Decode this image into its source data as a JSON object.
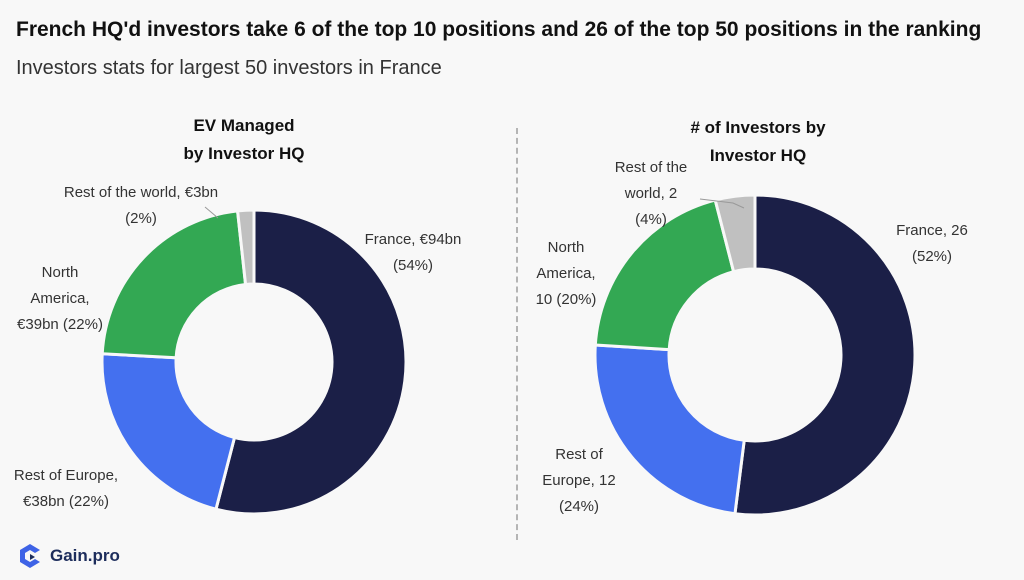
{
  "header": {
    "title": "French HQ'd investors take 6 of the top 10 positions and 26 of the top 50 positions in the ranking",
    "subtitle": "Investors stats for largest 50 investors in France"
  },
  "brand": {
    "name": "Gain.pro",
    "icon": "gain-logo-icon"
  },
  "colors": {
    "France": "#1b1f47",
    "Rest of Europe": "#4470ef",
    "North America": "#33a853",
    "Rest of the world": "#c0c0c0"
  },
  "chart_data": [
    {
      "type": "pie",
      "title_lines": [
        "EV Managed",
        "by Investor HQ"
      ],
      "slices": [
        {
          "name": "France",
          "value": 94,
          "percent": 54,
          "label_lines": [
            "France, €94bn",
            "(54%)"
          ]
        },
        {
          "name": "Rest of Europe",
          "value": 38,
          "percent": 22,
          "label_lines": [
            "Rest of Europe,",
            "€38bn (22%)"
          ]
        },
        {
          "name": "North America",
          "value": 39,
          "percent": 22,
          "label_lines": [
            "North",
            "America,",
            "€39bn (22%)"
          ]
        },
        {
          "name": "Rest of the world",
          "value": 3,
          "percent": 2,
          "label_lines": [
            "Rest of the world, €3bn",
            "(2%)"
          ]
        }
      ]
    },
    {
      "type": "pie",
      "title_lines": [
        "# of Investors by",
        "Investor HQ"
      ],
      "slices": [
        {
          "name": "France",
          "value": 26,
          "percent": 52,
          "label_lines": [
            "France, 26",
            "(52%)"
          ]
        },
        {
          "name": "Rest of Europe",
          "value": 12,
          "percent": 24,
          "label_lines": [
            "Rest of",
            "Europe, 12",
            "(24%)"
          ]
        },
        {
          "name": "North America",
          "value": 10,
          "percent": 20,
          "label_lines": [
            "North",
            "America,",
            "10 (20%)"
          ]
        },
        {
          "name": "Rest of the world",
          "value": 2,
          "percent": 4,
          "label_lines": [
            "Rest of the",
            "world, 2",
            "(4%)"
          ]
        }
      ]
    }
  ]
}
